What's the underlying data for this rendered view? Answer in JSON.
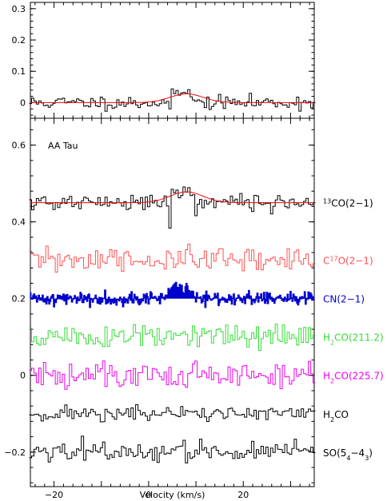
{
  "chart_data": [
    {
      "type": "line",
      "panel": "top",
      "xlim": [
        -25,
        35
      ],
      "ylim": [
        -0.05,
        0.32
      ],
      "yticks": [
        {
          "value": 0,
          "label": "0"
        },
        {
          "value": 0.1,
          "label": "0.1"
        },
        {
          "value": 0.2,
          "label": "0.2"
        },
        {
          "value": 0.3,
          "label": "0.3"
        }
      ],
      "series": [
        {
          "color": "#000000",
          "style": "step",
          "baseline": 0,
          "noise": 0.011,
          "seed": 11,
          "features": [
            {
              "x0": 4.4,
              "x1": 5.0,
              "values": [
                -0.03,
                0.16,
                0.3
              ]
            },
            {
              "x0": 5.0,
              "x1": 7.0,
              "values": [
                0.04,
                0.03,
                0.035,
                0.02
              ]
            },
            {
              "x0": 7.0,
              "x1": 9.5,
              "values": [
                0.035,
                0.04,
                0.03,
                0.035,
                0.02
              ]
            }
          ]
        },
        {
          "color": "#ff0000",
          "style": "fit",
          "baseline": 0,
          "amp": 0.028,
          "center": 8,
          "sigma": 3.5
        }
      ]
    },
    {
      "type": "line",
      "panel": "bottom",
      "target_label": "AA Tau",
      "xlim": [
        -25,
        35
      ],
      "ylim": [
        -0.29,
        0.67
      ],
      "xticks": [
        {
          "value": -20,
          "label": "−20"
        },
        {
          "value": 0,
          "label": "0"
        },
        {
          "value": 20,
          "label": "20"
        }
      ],
      "yticks": [
        {
          "value": -0.2,
          "label": "−0.2"
        },
        {
          "value": 0,
          "label": "0"
        },
        {
          "value": 0.2,
          "label": "0.2"
        },
        {
          "value": 0.4,
          "label": "0.4"
        },
        {
          "value": 0.6,
          "label": "0.6"
        }
      ],
      "xlabel": "Velocity (km/s)",
      "series": [
        {
          "label_parts": [
            {
              "t": "13",
              "sup": true
            },
            {
              "t": "CO(2−1)"
            }
          ],
          "color": "#000000",
          "baseline": 0.45,
          "noise": 0.011,
          "seed": 21,
          "fit": true,
          "features": [
            {
              "x0": 4.4,
              "x1": 5.0,
              "values": [
                0.38,
                0.55,
                0.65
              ]
            },
            {
              "x0": 5.0,
              "x1": 7.0,
              "values": [
                0.49,
                0.48,
                0.485,
                0.47
              ]
            },
            {
              "x0": 7.0,
              "x1": 9.5,
              "values": [
                0.48,
                0.49,
                0.48,
                0.485,
                0.47
              ]
            }
          ]
        },
        {
          "label_parts": [
            {
              "t": "C"
            },
            {
              "t": "17",
              "sup": true
            },
            {
              "t": "O(2−1)"
            }
          ],
          "color": "#ff5050",
          "baseline": 0.3,
          "noise": 0.017,
          "seed": 31
        },
        {
          "label_parts": [
            {
              "t": "CN(2−1)"
            }
          ],
          "color": "#0000cc",
          "baseline": 0.2,
          "noise": 0.009,
          "seed": 41,
          "dense": true,
          "features": [
            {
              "x0": 3.5,
              "x1": 9.5,
              "values": [
                0.21,
                0.22,
                0.23,
                0.24,
                0.225,
                0.235,
                0.22,
                0.23,
                0.215,
                0.22
              ]
            }
          ]
        },
        {
          "label_parts": [
            {
              "t": "H"
            },
            {
              "t": "2",
              "sub": true
            },
            {
              "t": "CO(211.2)"
            }
          ],
          "color": "#33dd33",
          "baseline": 0.1,
          "noise": 0.017,
          "seed": 51
        },
        {
          "label_parts": [
            {
              "t": "H"
            },
            {
              "t": "2",
              "sub": true
            },
            {
              "t": "CO(225.7)"
            }
          ],
          "color": "#ee00ee",
          "baseline": 0.0,
          "noise": 0.02,
          "seed": 61
        },
        {
          "label_parts": [
            {
              "t": "H"
            },
            {
              "t": "2",
              "sub": true
            },
            {
              "t": "CO"
            }
          ],
          "color": "#000000",
          "baseline": -0.1,
          "noise": 0.01,
          "seed": 71
        },
        {
          "label_parts": [
            {
              "t": "SO(5"
            },
            {
              "t": "4",
              "sub": true
            },
            {
              "t": "−4"
            },
            {
              "t": "3",
              "sub": true
            },
            {
              "t": ")"
            }
          ],
          "color": "#000000",
          "baseline": -0.2,
          "noise": 0.013,
          "seed": 81
        }
      ],
      "fit_curve": {
        "color": "#ff0000",
        "baseline": 0.45,
        "amp": 0.028,
        "center": 8,
        "sigma": 3.5
      }
    }
  ]
}
